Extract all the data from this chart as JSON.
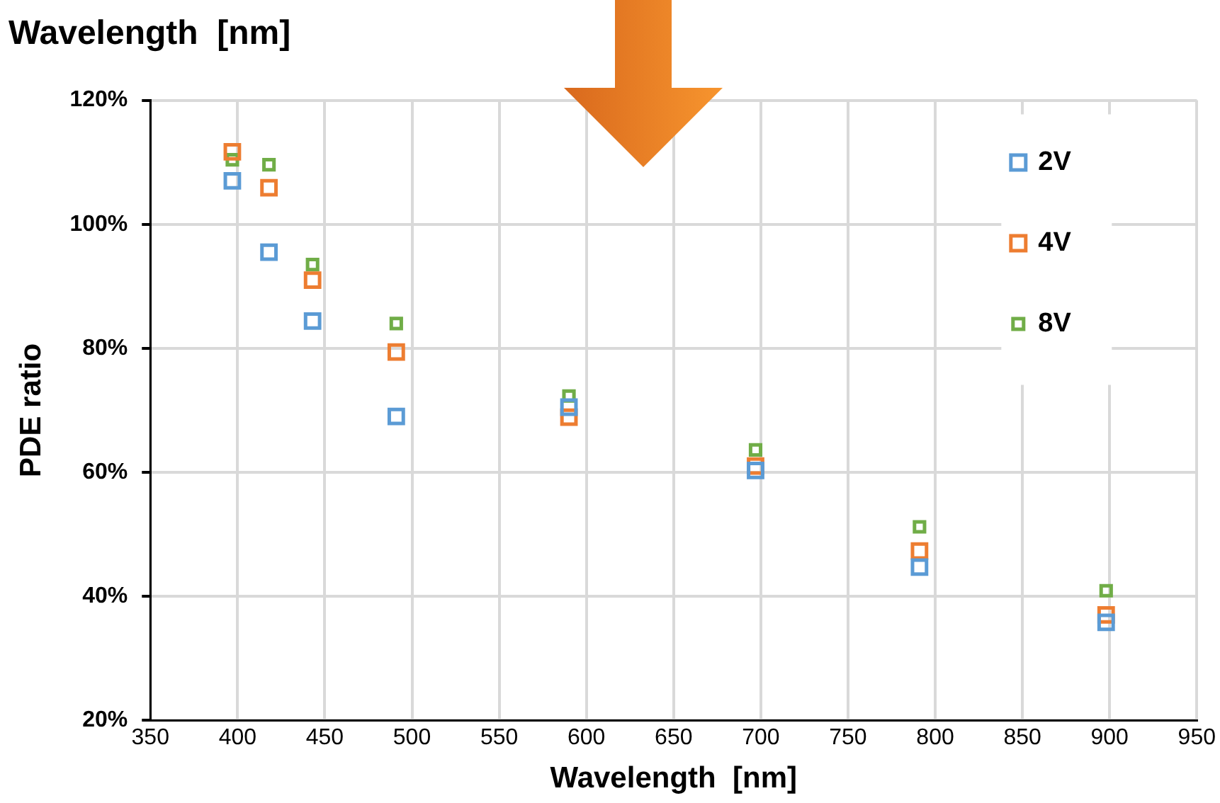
{
  "chart_data": {
    "type": "scatter",
    "title": "Wavelength  [nm]",
    "xlabel": "Wavelength  [nm]",
    "ylabel": "PDE ratio",
    "x": [
      397,
      418,
      443,
      491,
      590,
      697,
      791,
      898
    ],
    "series": [
      {
        "name": "2V",
        "color": "#5b9bd5",
        "values": [
          107,
          95.5,
          84.4,
          69,
          70.5,
          60.3,
          44.7,
          35.8
        ]
      },
      {
        "name": "4V",
        "color": "#ed7d31",
        "values": [
          111.7,
          105.9,
          91,
          79.4,
          68.9,
          61,
          47.3,
          37
        ]
      },
      {
        "name": "8V",
        "color": "#70ad47",
        "values": [
          110.4,
          109.6,
          93.5,
          84,
          72.3,
          63.6,
          51.2,
          40.9
        ]
      }
    ],
    "xlim": [
      350,
      950
    ],
    "xticks": [
      350,
      400,
      450,
      500,
      550,
      600,
      650,
      700,
      750,
      800,
      850,
      900,
      950
    ],
    "ylim": [
      20,
      120
    ],
    "yticks": [
      {
        "value": 20,
        "label": "20%"
      },
      {
        "value": 40,
        "label": "40%"
      },
      {
        "value": 60,
        "label": "60%"
      },
      {
        "value": 80,
        "label": "80%"
      },
      {
        "value": 100,
        "label": "100%"
      },
      {
        "value": 120,
        "label": "120%"
      }
    ],
    "grid": true,
    "legend": "top right",
    "marker": "square"
  }
}
